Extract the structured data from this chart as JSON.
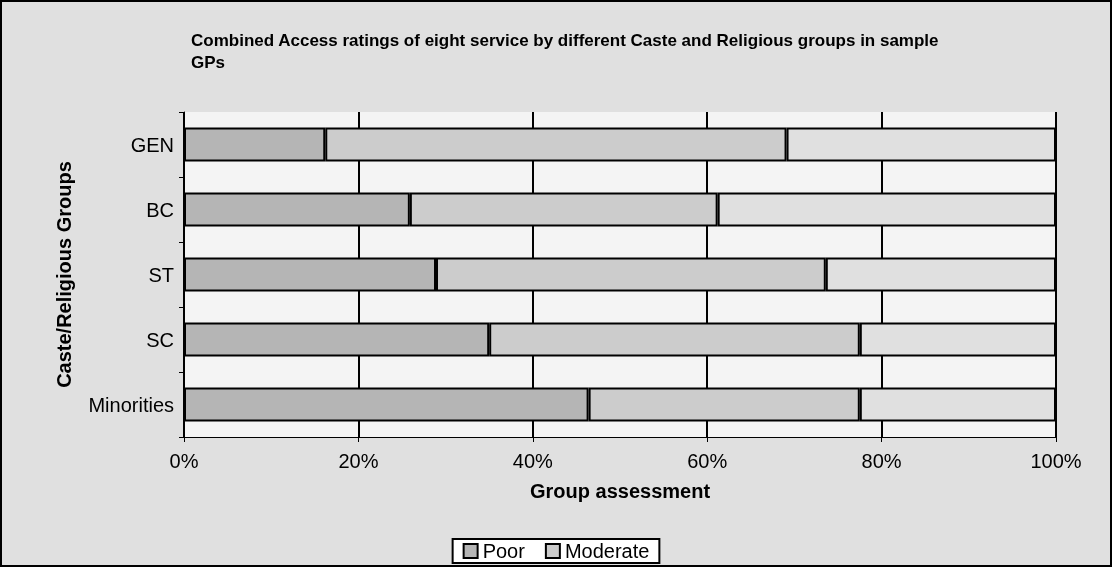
{
  "chart_data": {
    "type": "bar",
    "orientation": "horizontal",
    "stacked": true,
    "title": "Combined Access ratings of eight service by different Caste and Religious groups in sample GPs",
    "xlabel": "Group assessment",
    "ylabel": "Caste/Religious Groups",
    "categories": [
      "GEN",
      "BC",
      "ST",
      "SC",
      "Minorities"
    ],
    "series": [
      {
        "name": "Poor",
        "color": "#b5b5b5",
        "values": [
          16.2,
          25.9,
          28.9,
          35.0,
          46.4
        ]
      },
      {
        "name": "Moderate",
        "color": "#cccccc",
        "values": [
          52.9,
          35.3,
          44.7,
          42.5,
          31.1
        ]
      },
      {
        "color": "#e0e0e0",
        "values": [
          30.9,
          38.8,
          26.4,
          22.5,
          22.5
        ]
      }
    ],
    "xlim": [
      0,
      100
    ],
    "xticks": [
      {
        "value": 0,
        "label": "0%"
      },
      {
        "value": 20,
        "label": "20%"
      },
      {
        "value": 40,
        "label": "40%"
      },
      {
        "value": 60,
        "label": "60%"
      },
      {
        "value": 80,
        "label": "80%"
      },
      {
        "value": 100,
        "label": "100%"
      }
    ],
    "grid": "x",
    "legend": "bottom"
  }
}
